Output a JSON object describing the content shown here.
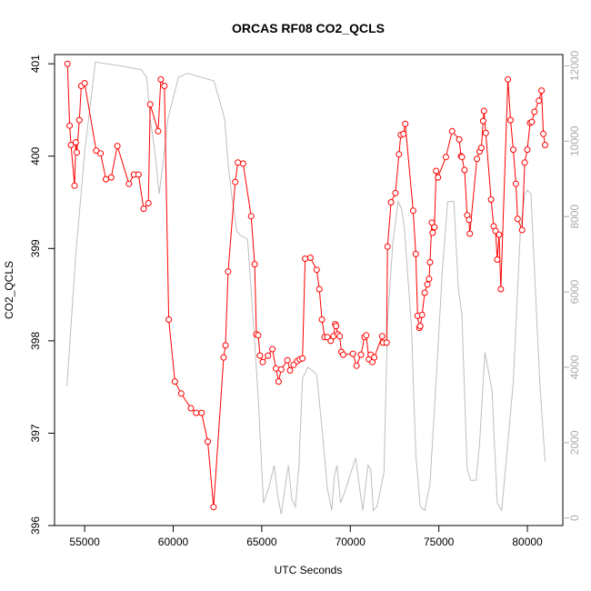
{
  "chart_data": {
    "type": "line",
    "title": "ORCAS RF08 CO2_QCLS",
    "xlabel": "UTC Seconds",
    "ylabel": "CO2_QCLS",
    "xlim": [
      53300,
      82000
    ],
    "ylim": [
      396,
      401.1
    ],
    "y2lim": [
      -200,
      12300
    ],
    "x_ticks": [
      55000,
      60000,
      65000,
      70000,
      75000,
      80000
    ],
    "y_ticks": [
      396,
      397,
      398,
      399,
      400,
      401
    ],
    "y2_ticks": [
      0,
      2000,
      4000,
      6000,
      8000,
      10000,
      12000
    ],
    "colors": {
      "primary": "#ff0000",
      "secondary": "#bebebe"
    },
    "series": [
      {
        "axis": "left",
        "style": "line+circles",
        "points": [
          [
            54030,
            401.0
          ],
          [
            54150,
            400.33
          ],
          [
            54230,
            400.12
          ],
          [
            54430,
            399.68
          ],
          [
            54500,
            400.15
          ],
          [
            54560,
            400.04
          ],
          [
            54700,
            400.39
          ],
          [
            54810,
            400.76
          ],
          [
            55000,
            400.79
          ],
          [
            55650,
            400.06
          ],
          [
            55900,
            400.03
          ],
          [
            56200,
            399.75
          ],
          [
            56500,
            399.77
          ],
          [
            56850,
            400.11
          ],
          [
            57500,
            399.7
          ],
          [
            57780,
            399.8
          ],
          [
            58040,
            399.8
          ],
          [
            58330,
            399.43
          ],
          [
            58600,
            399.49
          ],
          [
            58700,
            400.56
          ],
          [
            59150,
            400.27
          ],
          [
            59300,
            400.83
          ],
          [
            59500,
            400.76
          ],
          [
            59750,
            398.23
          ],
          [
            60100,
            397.56
          ],
          [
            60450,
            397.43
          ],
          [
            61000,
            397.27
          ],
          [
            61300,
            397.22
          ],
          [
            61600,
            397.22
          ],
          [
            61950,
            396.91
          ],
          [
            62280,
            396.2
          ],
          [
            62850,
            397.82
          ],
          [
            62950,
            397.95
          ],
          [
            63100,
            398.75
          ],
          [
            63500,
            399.72
          ],
          [
            63650,
            399.93
          ],
          [
            63950,
            399.92
          ],
          [
            64400,
            399.35
          ],
          [
            64600,
            398.83
          ],
          [
            64700,
            398.07
          ],
          [
            64800,
            398.06
          ],
          [
            64900,
            397.84
          ],
          [
            65050,
            397.77
          ],
          [
            65350,
            397.84
          ],
          [
            65600,
            397.91
          ],
          [
            65800,
            397.7
          ],
          [
            65950,
            397.56
          ],
          [
            66100,
            397.69
          ],
          [
            66450,
            397.79
          ],
          [
            66600,
            397.68
          ],
          [
            66800,
            397.74
          ],
          [
            67000,
            397.78
          ],
          [
            67150,
            397.8
          ],
          [
            67300,
            397.81
          ],
          [
            67450,
            398.89
          ],
          [
            67750,
            398.9
          ],
          [
            68100,
            398.77
          ],
          [
            68250,
            398.56
          ],
          [
            68400,
            398.23
          ],
          [
            68550,
            398.04
          ],
          [
            68700,
            398.04
          ],
          [
            68900,
            398.0
          ],
          [
            69050,
            398.05
          ],
          [
            69150,
            398.18
          ],
          [
            69200,
            398.16
          ],
          [
            69300,
            398.07
          ],
          [
            69400,
            398.05
          ],
          [
            69500,
            397.88
          ],
          [
            69600,
            397.85
          ],
          [
            70150,
            397.86
          ],
          [
            70350,
            397.73
          ],
          [
            70600,
            397.85
          ],
          [
            70800,
            398.04
          ],
          [
            70900,
            398.06
          ],
          [
            71050,
            397.8
          ],
          [
            71150,
            397.85
          ],
          [
            71250,
            397.77
          ],
          [
            71350,
            397.82
          ],
          [
            71800,
            398.05
          ],
          [
            71850,
            397.98
          ],
          [
            72050,
            397.98
          ],
          [
            72100,
            399.02
          ],
          [
            72300,
            399.5
          ],
          [
            72550,
            399.6
          ],
          [
            72750,
            400.02
          ],
          [
            72850,
            400.23
          ],
          [
            73000,
            400.24
          ],
          [
            73100,
            400.35
          ],
          [
            73550,
            399.41
          ],
          [
            73700,
            398.94
          ],
          [
            73800,
            398.27
          ],
          [
            73900,
            398.14
          ],
          [
            73950,
            398.16
          ],
          [
            74050,
            398.28
          ],
          [
            74200,
            398.52
          ],
          [
            74350,
            398.61
          ],
          [
            74450,
            398.67
          ],
          [
            74500,
            398.85
          ],
          [
            74600,
            399.28
          ],
          [
            74650,
            399.17
          ],
          [
            74750,
            399.23
          ],
          [
            74850,
            399.84
          ],
          [
            74950,
            399.77
          ],
          [
            75400,
            399.99
          ],
          [
            75750,
            400.27
          ],
          [
            76150,
            400.18
          ],
          [
            76250,
            400.0
          ],
          [
            76300,
            399.99
          ],
          [
            76450,
            399.85
          ],
          [
            76600,
            399.36
          ],
          [
            76700,
            399.31
          ],
          [
            76750,
            399.16
          ],
          [
            77150,
            399.97
          ],
          [
            77300,
            400.05
          ],
          [
            77400,
            400.09
          ],
          [
            77500,
            400.38
          ],
          [
            77550,
            400.49
          ],
          [
            77650,
            400.25
          ],
          [
            77950,
            399.53
          ],
          [
            78100,
            399.24
          ],
          [
            78200,
            399.19
          ],
          [
            78300,
            398.88
          ],
          [
            78400,
            399.15
          ],
          [
            78500,
            398.56
          ],
          [
            78900,
            400.83
          ],
          [
            79050,
            400.39
          ],
          [
            79200,
            400.07
          ],
          [
            79350,
            399.7
          ],
          [
            79450,
            399.32
          ],
          [
            79700,
            399.2
          ],
          [
            79850,
            399.93
          ],
          [
            80000,
            400.07
          ],
          [
            80150,
            400.36
          ],
          [
            80250,
            400.37
          ],
          [
            80400,
            400.48
          ],
          [
            80650,
            400.6
          ],
          [
            80800,
            400.71
          ],
          [
            80900,
            400.24
          ],
          [
            81000,
            400.12
          ]
        ]
      },
      {
        "axis": "right",
        "style": "line",
        "points": [
          [
            54000,
            3500
          ],
          [
            54500,
            7000
          ],
          [
            55000,
            9700
          ],
          [
            55600,
            12100
          ],
          [
            57000,
            12000
          ],
          [
            58200,
            11900
          ],
          [
            58500,
            11700
          ],
          [
            58700,
            10600
          ],
          [
            59000,
            9600
          ],
          [
            59200,
            8600
          ],
          [
            59400,
            9300
          ],
          [
            59700,
            10600
          ],
          [
            60300,
            11700
          ],
          [
            60800,
            11800
          ],
          [
            62300,
            11600
          ],
          [
            62900,
            10600
          ],
          [
            63100,
            9400
          ],
          [
            63350,
            8400
          ],
          [
            63600,
            7600
          ],
          [
            63800,
            7500
          ],
          [
            64200,
            7400
          ],
          [
            64500,
            5400
          ],
          [
            64800,
            3200
          ],
          [
            65100,
            400
          ],
          [
            65400,
            800
          ],
          [
            65700,
            1400
          ],
          [
            65900,
            600
          ],
          [
            66100,
            100
          ],
          [
            66500,
            1400
          ],
          [
            66700,
            500
          ],
          [
            66900,
            300
          ],
          [
            67100,
            1400
          ],
          [
            67300,
            3700
          ],
          [
            67600,
            4000
          ],
          [
            67900,
            3900
          ],
          [
            68100,
            3800
          ],
          [
            68400,
            2400
          ],
          [
            68700,
            800
          ],
          [
            68950,
            200
          ],
          [
            69100,
            1100
          ],
          [
            69250,
            1400
          ],
          [
            69450,
            400
          ],
          [
            69700,
            700
          ],
          [
            70300,
            1600
          ],
          [
            70700,
            200
          ],
          [
            70900,
            1000
          ],
          [
            71000,
            1400
          ],
          [
            71150,
            1300
          ],
          [
            71300,
            200
          ],
          [
            71500,
            300
          ],
          [
            71900,
            1200
          ],
          [
            72100,
            5200
          ],
          [
            72400,
            7300
          ],
          [
            72700,
            8400
          ],
          [
            72900,
            8200
          ],
          [
            73050,
            7700
          ],
          [
            73450,
            5100
          ],
          [
            73700,
            1700
          ],
          [
            73950,
            300
          ],
          [
            74200,
            200
          ],
          [
            74500,
            900
          ],
          [
            74800,
            3300
          ],
          [
            75200,
            6600
          ],
          [
            75500,
            8400
          ],
          [
            75850,
            8400
          ],
          [
            76100,
            6100
          ],
          [
            76300,
            5400
          ],
          [
            76600,
            1300
          ],
          [
            76800,
            1000
          ],
          [
            77100,
            1000
          ],
          [
            77300,
            2000
          ],
          [
            77600,
            4400
          ],
          [
            78000,
            3400
          ],
          [
            78300,
            400
          ],
          [
            78550,
            200
          ],
          [
            78800,
            1500
          ],
          [
            79200,
            3600
          ],
          [
            79600,
            7600
          ],
          [
            79850,
            8600
          ],
          [
            80000,
            8700
          ],
          [
            80200,
            8600
          ],
          [
            80700,
            3600
          ],
          [
            81000,
            1500
          ]
        ]
      }
    ]
  }
}
